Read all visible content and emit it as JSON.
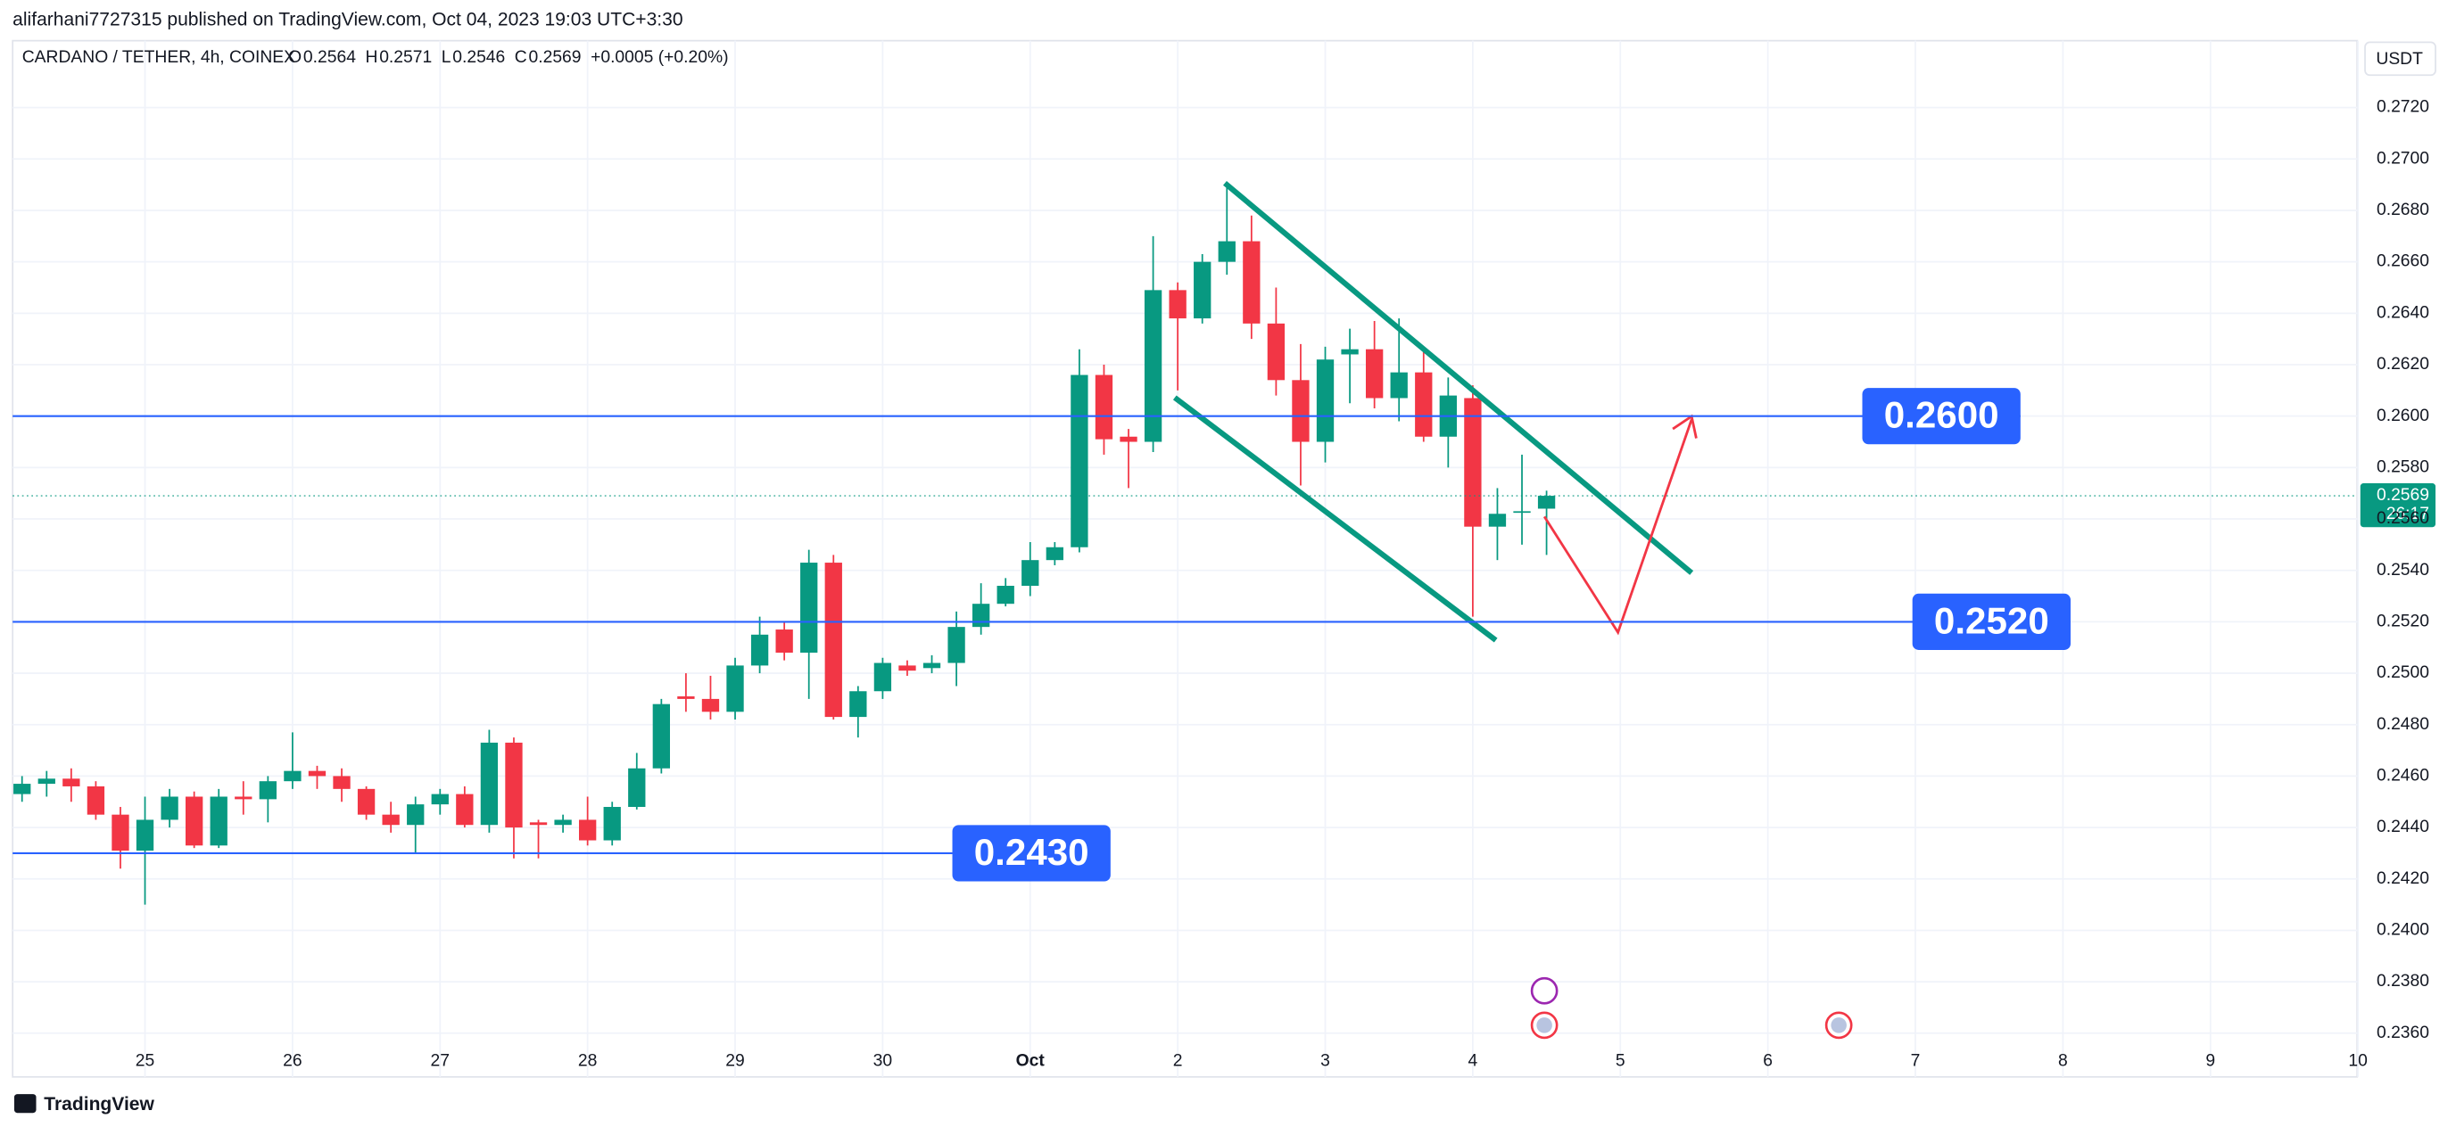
{
  "publisher_line": "alifarhani7727315 published on TradingView.com, Oct 04, 2023 19:03 UTC+3:30",
  "brand": "TradingView",
  "chart_data": {
    "type": "candlestick",
    "title": "CARDANO / TETHER, 4h, COINEX",
    "legend": [
      {
        "label": "O",
        "value": 0.2564
      },
      {
        "label": "H",
        "value": 0.2571
      },
      {
        "label": "L",
        "value": 0.2546
      },
      {
        "label": "C",
        "value": 0.2569
      }
    ],
    "change": "+0.0005 (+0.20%)",
    "currency": "USDT",
    "up_color": "#089981",
    "down_color": "#f23645",
    "grid": true,
    "categories": [
      null,
      null,
      null,
      null,
      null,
      "25",
      null,
      null,
      null,
      null,
      null,
      "26",
      null,
      null,
      null,
      null,
      null,
      "27",
      null,
      null,
      null,
      null,
      null,
      "28",
      null,
      null,
      null,
      null,
      null,
      "29",
      null,
      null,
      null,
      null,
      null,
      "30",
      null,
      null,
      null,
      null,
      null,
      "Oct",
      null,
      null,
      null,
      null,
      null,
      "2",
      null,
      null,
      null,
      null,
      null,
      "3",
      null,
      null,
      null,
      null,
      null,
      "4",
      null,
      null,
      null,
      null,
      null,
      "5",
      null,
      null,
      null,
      null,
      null,
      "6",
      null,
      null,
      null,
      null,
      null,
      "7",
      null,
      null,
      null,
      null,
      null,
      "8",
      null,
      null,
      null,
      null,
      null,
      "9",
      null,
      null,
      null,
      null,
      null,
      "10"
    ],
    "open": [
      0.2453,
      0.2457,
      0.2459,
      0.2456,
      0.2445,
      0.2431,
      0.2443,
      0.2452,
      0.2433,
      0.2452,
      0.2451,
      0.2458,
      0.2462,
      0.246,
      0.2455,
      0.2445,
      0.2441,
      0.2449,
      0.2453,
      0.2441,
      0.2473,
      0.2442,
      0.2441,
      0.2443,
      0.2435,
      0.2448,
      0.2463,
      0.2491,
      0.249,
      0.2485,
      0.2503,
      0.2517,
      0.2508,
      0.2543,
      0.2483,
      0.2493,
      0.2503,
      0.2502,
      0.2504,
      0.2518,
      0.2527,
      0.2534,
      0.2544,
      0.2549,
      0.2616,
      0.2592,
      0.259,
      0.2649,
      0.2638,
      0.266,
      0.2668,
      0.2636,
      0.2614,
      0.259,
      0.2624,
      0.2626,
      0.2607,
      0.2617,
      0.2592,
      0.2607,
      0.2557,
      0.2563,
      0.2564,
      null,
      null,
      null,
      null,
      null,
      null,
      null,
      null,
      null,
      null,
      null,
      null,
      null,
      null,
      null,
      null,
      null,
      null,
      null,
      null,
      null,
      null,
      null,
      null,
      null,
      null,
      null,
      null,
      null,
      null,
      null,
      null,
      null
    ],
    "high": [
      0.246,
      0.2462,
      0.2463,
      0.2458,
      0.2448,
      0.2452,
      0.2455,
      0.2454,
      0.2455,
      0.2458,
      0.246,
      0.2477,
      0.2464,
      0.2463,
      0.2456,
      0.245,
      0.2452,
      0.2455,
      0.2456,
      0.2478,
      0.2475,
      0.2443,
      0.2445,
      0.2452,
      0.245,
      0.2469,
      0.249,
      0.25,
      0.2499,
      0.2506,
      0.2522,
      0.252,
      0.2548,
      0.2546,
      0.2495,
      0.2506,
      0.2505,
      0.2507,
      0.2524,
      0.2535,
      0.2537,
      0.2551,
      0.2551,
      0.2626,
      0.262,
      0.2595,
      0.267,
      0.2652,
      0.2663,
      0.269,
      0.2678,
      0.265,
      0.2628,
      0.2627,
      0.2634,
      0.2637,
      0.2638,
      0.2625,
      0.2615,
      0.2612,
      0.2572,
      0.2585,
      0.2571,
      null,
      null,
      null,
      null,
      null,
      null,
      null,
      null,
      null,
      null,
      null,
      null,
      null,
      null,
      null,
      null,
      null,
      null,
      null,
      null,
      null,
      null,
      null,
      null,
      null,
      null,
      null,
      null,
      null,
      null,
      null,
      null,
      null
    ],
    "low": [
      0.245,
      0.2452,
      0.245,
      0.2443,
      0.2424,
      0.241,
      0.244,
      0.2432,
      0.2432,
      0.2445,
      0.2442,
      0.2455,
      0.2455,
      0.245,
      0.2443,
      0.2438,
      0.243,
      0.2445,
      0.244,
      0.2438,
      0.2428,
      0.2428,
      0.2438,
      0.2433,
      0.2433,
      0.2447,
      0.2461,
      0.2485,
      0.2482,
      0.2482,
      0.25,
      0.2505,
      0.249,
      0.2482,
      0.2475,
      0.249,
      0.2499,
      0.25,
      0.2495,
      0.2515,
      0.2526,
      0.253,
      0.2542,
      0.2547,
      0.2585,
      0.2572,
      0.2586,
      0.261,
      0.2636,
      0.2655,
      0.263,
      0.2608,
      0.2573,
      0.2582,
      0.2605,
      0.2603,
      0.2598,
      0.259,
      0.258,
      0.2522,
      0.2544,
      0.255,
      0.2546,
      null,
      null,
      null,
      null,
      null,
      null,
      null,
      null,
      null,
      null,
      null,
      null,
      null,
      null,
      null,
      null,
      null,
      null,
      null,
      null,
      null,
      null,
      null,
      null,
      null,
      null,
      null,
      null,
      null,
      null,
      null,
      null,
      null
    ],
    "close": [
      0.2457,
      0.2459,
      0.2456,
      0.2445,
      0.2431,
      0.2443,
      0.2452,
      0.2433,
      0.2452,
      0.2451,
      0.2458,
      0.2462,
      0.246,
      0.2455,
      0.2445,
      0.2441,
      0.2449,
      0.2453,
      0.2441,
      0.2473,
      0.244,
      0.2441,
      0.2443,
      0.2435,
      0.2448,
      0.2463,
      0.2488,
      0.249,
      0.2485,
      0.2503,
      0.2515,
      0.2508,
      0.2543,
      0.2483,
      0.2493,
      0.2504,
      0.2501,
      0.2504,
      0.2518,
      0.2527,
      0.2534,
      0.2544,
      0.2549,
      0.2616,
      0.2591,
      0.259,
      0.2649,
      0.2638,
      0.266,
      0.2668,
      0.2636,
      0.2614,
      0.259,
      0.2622,
      0.2626,
      0.2607,
      0.2617,
      0.2592,
      0.2608,
      0.2557,
      0.2562,
      0.2563,
      0.2569,
      null,
      null,
      null,
      null,
      null,
      null,
      null,
      null,
      null,
      null,
      null,
      null,
      null,
      null,
      null,
      null,
      null,
      null,
      null,
      null,
      null,
      null,
      null,
      null,
      null,
      null,
      null,
      null,
      null,
      null,
      null,
      null,
      null
    ],
    "ylim": [
      0.2343,
      0.2746
    ],
    "yticks": [
      {
        "value": 0.236,
        "label": "0.2360"
      },
      {
        "value": 0.238,
        "label": "0.2380"
      },
      {
        "value": 0.24,
        "label": "0.2400"
      },
      {
        "value": 0.242,
        "label": "0.2420"
      },
      {
        "value": 0.244,
        "label": "0.2440"
      },
      {
        "value": 0.246,
        "label": "0.2460"
      },
      {
        "value": 0.248,
        "label": "0.2480"
      },
      {
        "value": 0.25,
        "label": "0.2500"
      },
      {
        "value": 0.252,
        "label": "0.2520"
      },
      {
        "value": 0.254,
        "label": "0.2540"
      },
      {
        "value": 0.256,
        "label": "0.2560"
      },
      {
        "value": 0.258,
        "label": "0.2580"
      },
      {
        "value": 0.26,
        "label": "0.2600"
      },
      {
        "value": 0.262,
        "label": "0.2620"
      },
      {
        "value": 0.264,
        "label": "0.2640"
      },
      {
        "value": 0.266,
        "label": "0.2660"
      },
      {
        "value": 0.268,
        "label": "0.2680"
      },
      {
        "value": 0.27,
        "label": "0.2700"
      },
      {
        "value": 0.272,
        "label": "0.2720"
      }
    ],
    "levels": [
      {
        "value": 0.26,
        "label": "0.2600"
      },
      {
        "value": 0.252,
        "label": "0.2520"
      },
      {
        "value": 0.243,
        "label": "0.2430"
      }
    ],
    "level_color": "#2962ff",
    "last_price": {
      "value": 0.2569,
      "label": "0.2569"
    },
    "countdown": "26:17"
  }
}
